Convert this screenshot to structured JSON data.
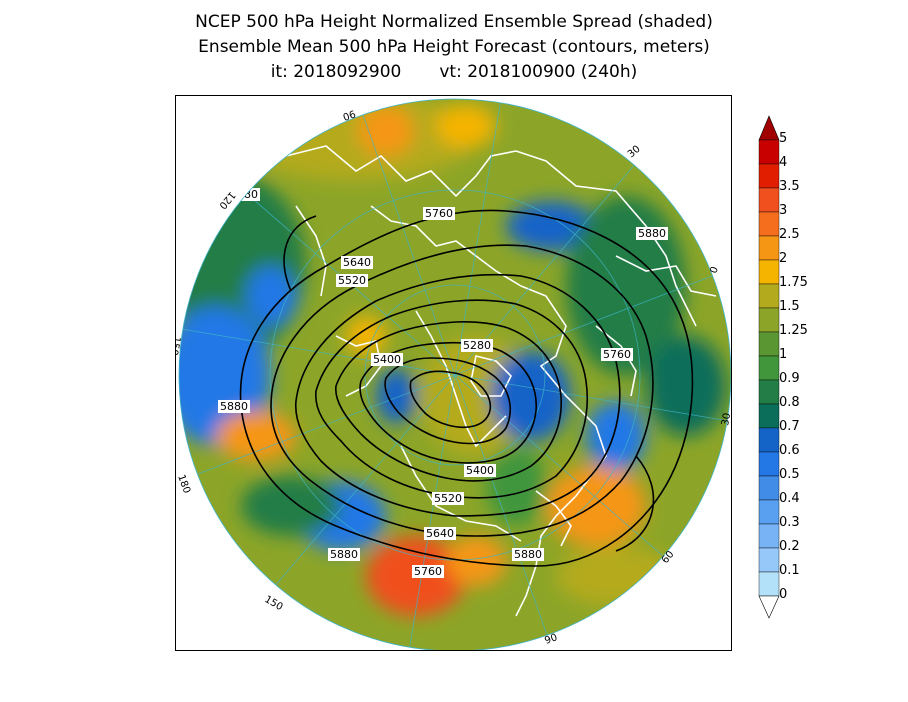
{
  "header": {
    "line1": "NCEP 500 hPa Height Normalized Ensemble Spread (shaded)",
    "line2": "Ensemble Mean 500 hPa Height Forecast (contours, meters)",
    "init": "it: 2018092900",
    "valid": "vt: 2018100900 (240h)"
  },
  "map": {
    "projection": "north-polar-stereographic",
    "contour_labels": [
      "5880",
      "5760",
      "5640",
      "5520",
      "5400",
      "5280",
      "5760",
      "5880",
      "5880",
      "5400",
      "5520",
      "5640",
      "5760",
      "5880",
      "5880"
    ],
    "longitude_labels": [
      "60",
      "30",
      "0",
      "30",
      "60",
      "90",
      "120",
      "150",
      "180",
      "150",
      "120",
      "90"
    ]
  },
  "colorbar": {
    "levels": [
      "5",
      "4",
      "3.5",
      "3",
      "2.5",
      "2",
      "1.75",
      "1.5",
      "1.25",
      "1",
      "0.9",
      "0.8",
      "0.7",
      "0.6",
      "0.5",
      "0.4",
      "0.3",
      "0.2",
      "0.1",
      "0"
    ],
    "colors": [
      "#a00000",
      "#c80000",
      "#e11e00",
      "#f0501e",
      "#f56e1e",
      "#f59614",
      "#f5b400",
      "#b4aa1e",
      "#8ca528",
      "#5a9632",
      "#41963c",
      "#237d46",
      "#0a6e5a",
      "#1464c8",
      "#2378e6",
      "#418ce6",
      "#5aa0f0",
      "#78b4f5",
      "#96c8fa",
      "#b4e1fa"
    ]
  }
}
